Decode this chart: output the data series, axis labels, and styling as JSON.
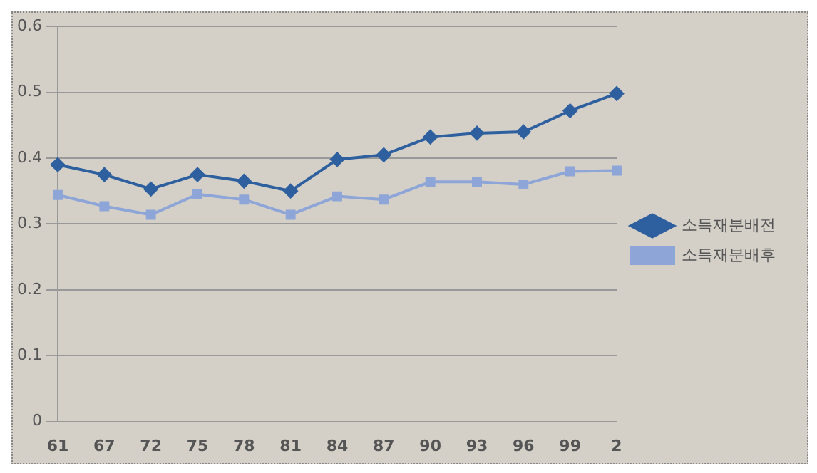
{
  "chart_data": {
    "type": "line",
    "categories": [
      "61",
      "67",
      "72",
      "75",
      "78",
      "81",
      "84",
      "87",
      "90",
      "93",
      "96",
      "99",
      "2"
    ],
    "series": [
      {
        "name": "소득재분배전",
        "color": "#2e5f9e",
        "marker": "diamond",
        "values": [
          0.39,
          0.375,
          0.353,
          0.375,
          0.365,
          0.35,
          0.398,
          0.405,
          0.432,
          0.438,
          0.44,
          0.472,
          0.498
        ]
      },
      {
        "name": "소득재분배후",
        "color": "#8ea5d8",
        "marker": "square",
        "values": [
          0.344,
          0.327,
          0.314,
          0.345,
          0.337,
          0.314,
          0.342,
          0.337,
          0.364,
          0.364,
          0.36,
          0.38,
          0.381
        ]
      }
    ],
    "ylim": [
      0,
      0.6
    ],
    "yticks": [
      0,
      0.1,
      0.2,
      0.3,
      0.4,
      0.5,
      0.6
    ],
    "grid": "y",
    "legend": "right"
  }
}
